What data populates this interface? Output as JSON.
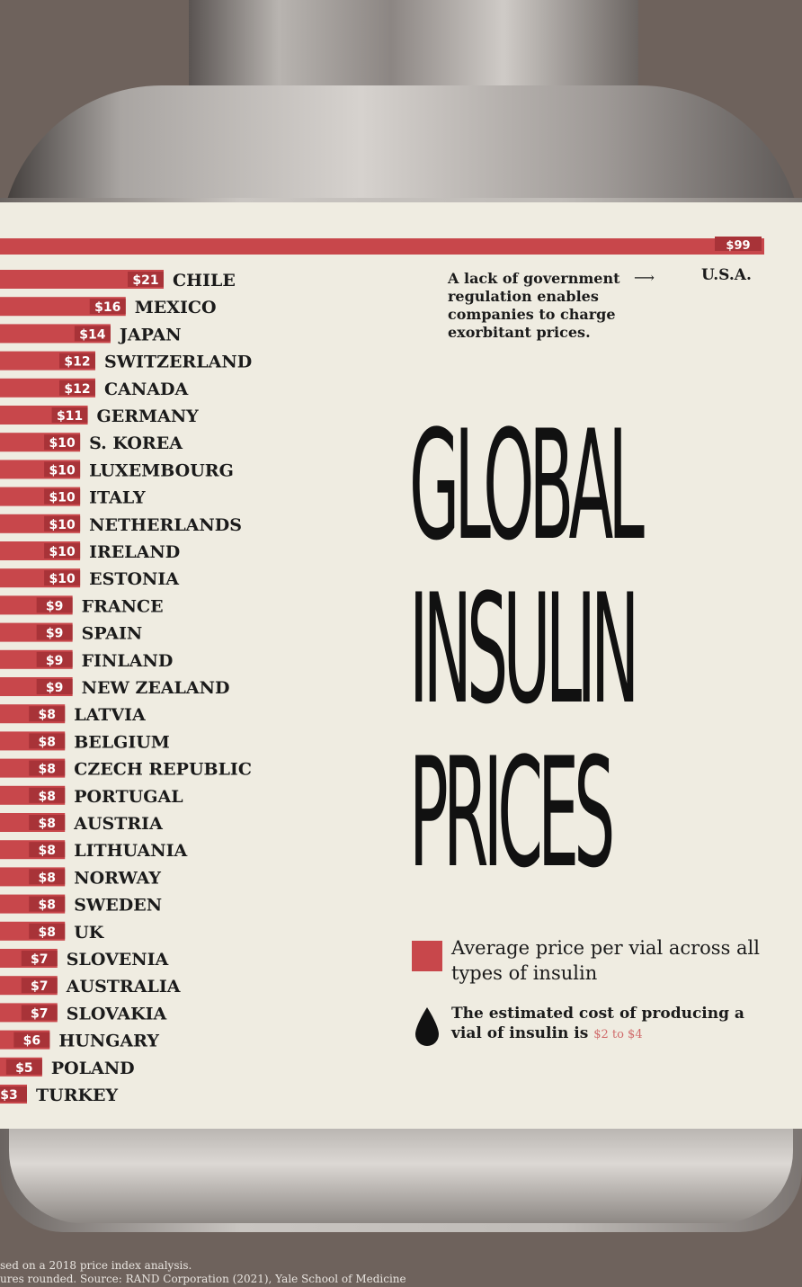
{
  "annotation": {
    "text": "A lack of government regulation enables companies to charge exorbitant prices.",
    "usa_label": "U.S.A.",
    "usa_value": "$99"
  },
  "title": [
    "GLOBAL",
    "INSULIN",
    "PRICES"
  ],
  "legend": {
    "price_text": "Average price per vial across all types of insulin",
    "cost_text": "The estimated cost of producing a vial of insulin is",
    "cost_range": "$2 to $4",
    "swatch_color": "#c8474b"
  },
  "footnote": {
    "line1": "sed on a 2018 price index analysis.",
    "line2": "ures rounded. Source: RAND Corporation (2021), Yale School of Medicine"
  },
  "chart_data": {
    "type": "bar",
    "orientation": "horizontal",
    "bar_color": "#c8474b",
    "categories": [
      "U.S.A.",
      "CHILE",
      "MEXICO",
      "JAPAN",
      "SWITZERLAND",
      "CANADA",
      "GERMANY",
      "S. KOREA",
      "LUXEMBOURG",
      "ITALY",
      "NETHERLANDS",
      "IRELAND",
      "ESTONIA",
      "FRANCE",
      "SPAIN",
      "FINLAND",
      "NEW ZEALAND",
      "LATVIA",
      "BELGIUM",
      "CZECH REPUBLIC",
      "PORTUGAL",
      "AUSTRIA",
      "LITHUANIA",
      "NORWAY",
      "SWEDEN",
      "UK",
      "SLOVENIA",
      "AUSTRALIA",
      "SLOVAKIA",
      "HUNGARY",
      "POLAND",
      "TURKEY"
    ],
    "values": [
      99,
      21,
      16,
      14,
      12,
      12,
      11,
      10,
      10,
      10,
      10,
      10,
      10,
      9,
      9,
      9,
      9,
      8,
      8,
      8,
      8,
      8,
      8,
      8,
      8,
      8,
      7,
      7,
      7,
      6,
      5,
      3
    ],
    "value_labels": [
      "$99",
      "$21",
      "$16",
      "$14",
      "$12",
      "$12",
      "$11",
      "$10",
      "$10",
      "$10",
      "$10",
      "$10",
      "$10",
      "$9",
      "$9",
      "$9",
      "$9",
      "$8",
      "$8",
      "$8",
      "$8",
      "$8",
      "$8",
      "$8",
      "$8",
      "$8",
      "$7",
      "$7",
      "$7",
      "$6",
      "$5",
      "$3"
    ]
  }
}
